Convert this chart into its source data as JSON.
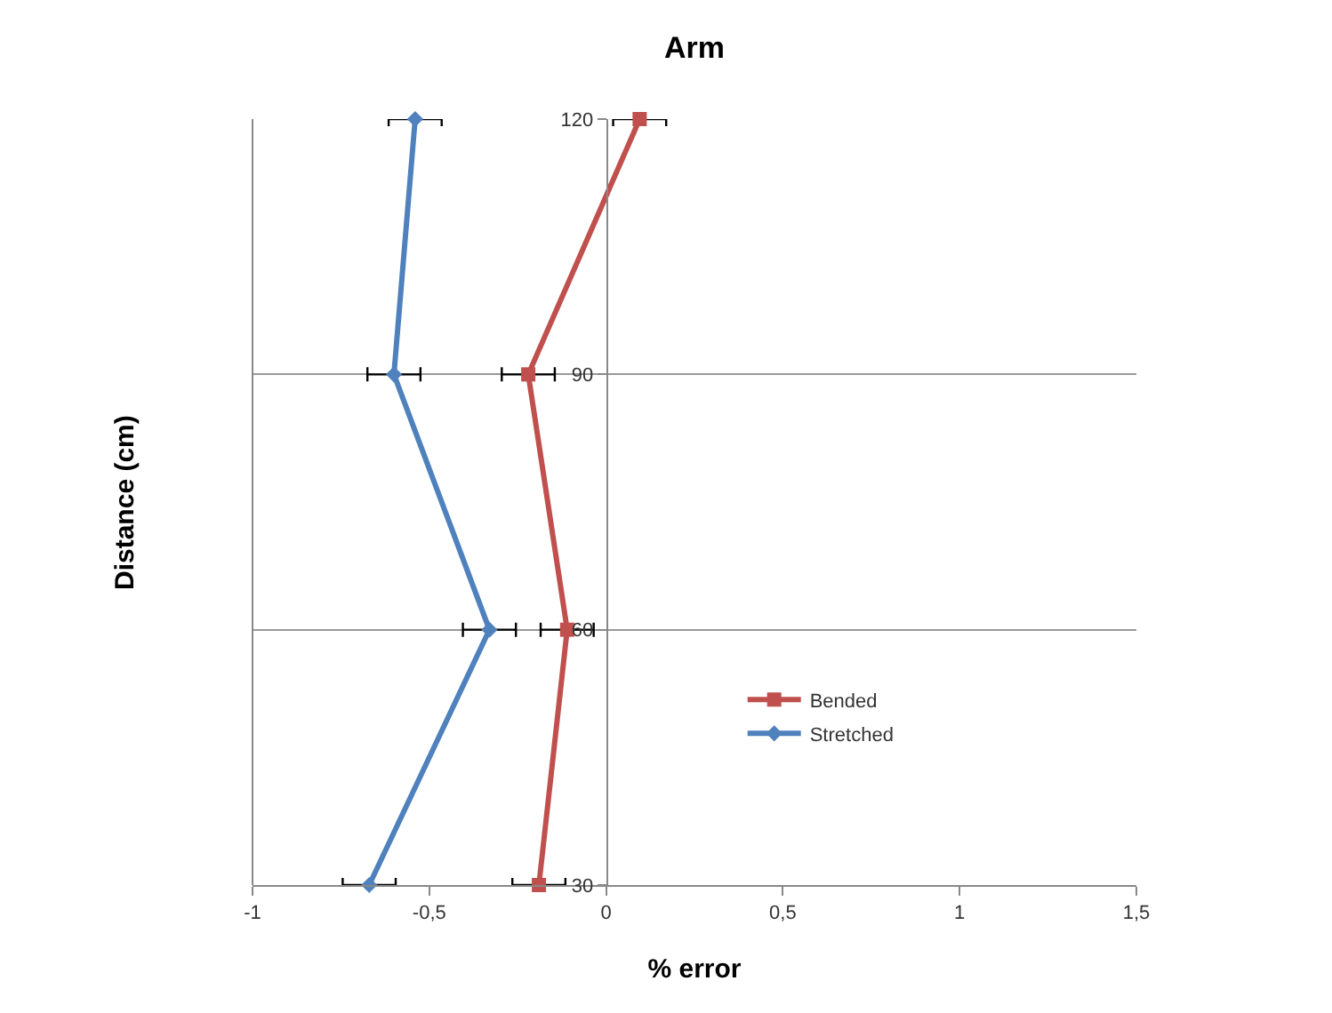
{
  "chart_data": {
    "type": "line",
    "title": "Arm",
    "xlabel": "% error",
    "ylabel": "Distance (cm)",
    "orientation": "horizontal",
    "x": [
      120,
      90,
      60,
      30
    ],
    "series": [
      {
        "name": "Bended",
        "color": "#c0504d",
        "marker": "square",
        "values": [
          0.095,
          -0.22,
          -0.11,
          -0.19
        ],
        "errors": [
          0.075,
          0.075,
          0.075,
          0.075
        ]
      },
      {
        "name": "Stretched",
        "color": "#4f81bd",
        "marker": "diamond",
        "values": [
          -0.54,
          -0.6,
          -0.33,
          -0.67
        ],
        "errors": [
          0.075,
          0.075,
          0.075,
          0.075
        ]
      }
    ],
    "xlim": [
      -1,
      1.5
    ],
    "xticks": [
      -1,
      {
        "value": -0.5,
        "label": "-0,5"
      },
      0,
      {
        "value": 0.5,
        "label": "0,5"
      },
      1,
      {
        "value": 1.5,
        "label": "1,5"
      }
    ],
    "ylim": [
      30,
      120
    ],
    "yticks": [
      30,
      60,
      90,
      120
    ],
    "grid": "y",
    "legend": "right",
    "line_style": "solid"
  }
}
